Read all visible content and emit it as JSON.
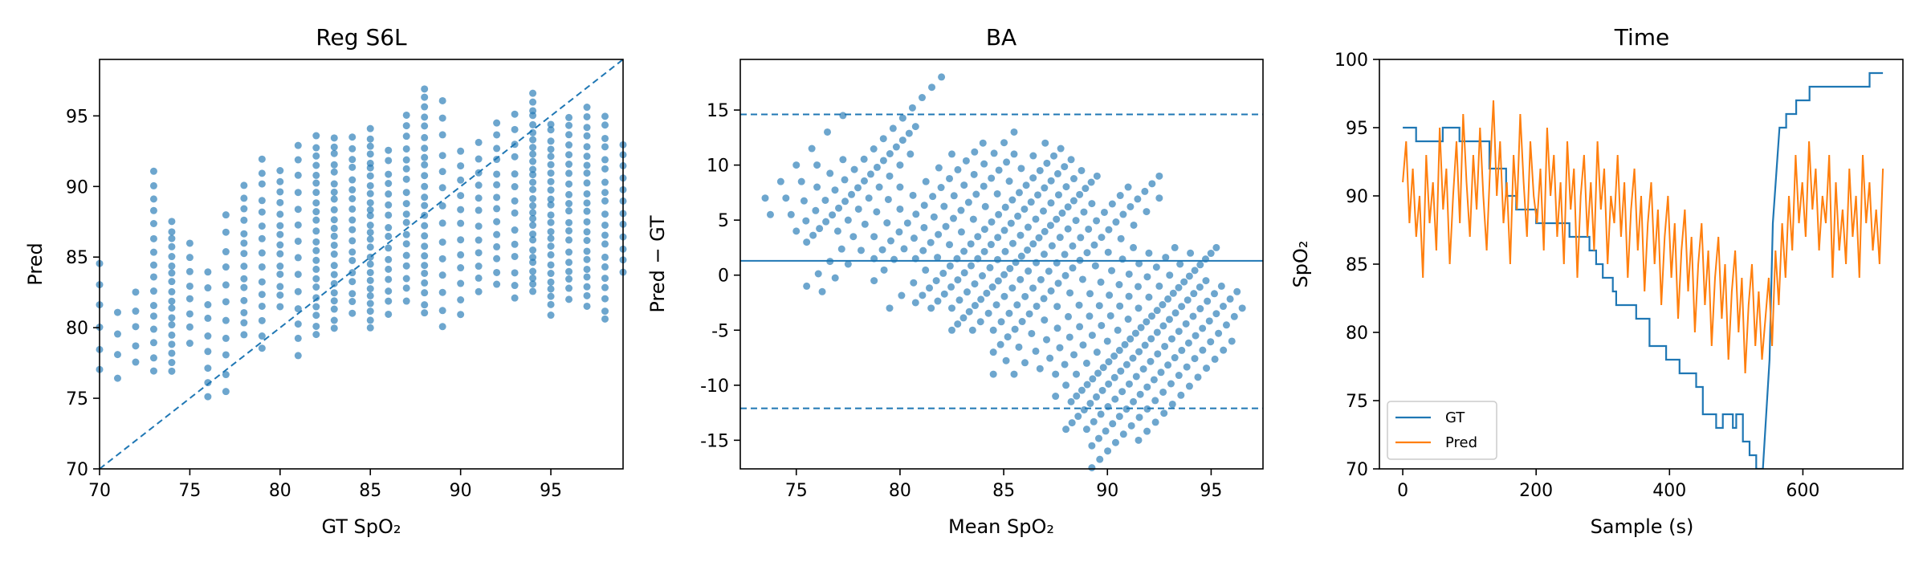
{
  "chart_data": [
    {
      "type": "scatter",
      "title": "Reg S6L",
      "xlabel": "GT SpO₂",
      "ylabel": "Pred",
      "xlim": [
        70,
        99
      ],
      "ylim": [
        70,
        99
      ],
      "xticks": [
        70,
        75,
        80,
        85,
        90,
        95
      ],
      "yticks": [
        70,
        75,
        80,
        85,
        90,
        95
      ],
      "grid": false,
      "point_color": "#1f77b4",
      "identity_line": {
        "style": "dashed",
        "from": [
          70,
          70
        ],
        "to": [
          99,
          99
        ]
      },
      "columns": [
        {
          "x": 70,
          "y_min": 77,
          "y_max": 84.5,
          "n": 6
        },
        {
          "x": 71,
          "y_min": 76.5,
          "y_max": 81,
          "n": 4
        },
        {
          "x": 72,
          "y_min": 77.5,
          "y_max": 82.5,
          "n": 5
        },
        {
          "x": 73,
          "y_min": 77,
          "y_max": 91,
          "n": 16
        },
        {
          "x": 74,
          "y_min": 77,
          "y_max": 87.5,
          "n": 18
        },
        {
          "x": 75,
          "y_min": 79,
          "y_max": 86,
          "n": 8
        },
        {
          "x": 76,
          "y_min": 75,
          "y_max": 84,
          "n": 9
        },
        {
          "x": 77,
          "y_min": 75.5,
          "y_max": 88,
          "n": 11
        },
        {
          "x": 78,
          "y_min": 79.5,
          "y_max": 90,
          "n": 14
        },
        {
          "x": 79,
          "y_min": 78.5,
          "y_max": 92,
          "n": 15
        },
        {
          "x": 80,
          "y_min": 81.5,
          "y_max": 91,
          "n": 14
        },
        {
          "x": 81,
          "y_min": 78,
          "y_max": 93,
          "n": 14
        },
        {
          "x": 82,
          "y_min": 79.5,
          "y_max": 93.5,
          "n": 22
        },
        {
          "x": 83,
          "y_min": 80,
          "y_max": 93.5,
          "n": 22
        },
        {
          "x": 84,
          "y_min": 81,
          "y_max": 93.5,
          "n": 18
        },
        {
          "x": 85,
          "y_min": 80,
          "y_max": 94,
          "n": 26
        },
        {
          "x": 86,
          "y_min": 81,
          "y_max": 92.5,
          "n": 16
        },
        {
          "x": 87,
          "y_min": 82,
          "y_max": 95,
          "n": 18
        },
        {
          "x": 88,
          "y_min": 81,
          "y_max": 97,
          "n": 24
        },
        {
          "x": 89,
          "y_min": 80,
          "y_max": 96,
          "n": 14
        },
        {
          "x": 90,
          "y_min": 81,
          "y_max": 92.5,
          "n": 12
        },
        {
          "x": 91,
          "y_min": 82.5,
          "y_max": 93,
          "n": 12
        },
        {
          "x": 92,
          "y_min": 83,
          "y_max": 94.5,
          "n": 14
        },
        {
          "x": 93,
          "y_min": 82,
          "y_max": 95,
          "n": 14
        },
        {
          "x": 94,
          "y_min": 82.5,
          "y_max": 96.5,
          "n": 28
        },
        {
          "x": 95,
          "y_min": 81,
          "y_max": 94.5,
          "n": 24
        },
        {
          "x": 96,
          "y_min": 82,
          "y_max": 95,
          "n": 20
        },
        {
          "x": 97,
          "y_min": 81.5,
          "y_max": 95.5,
          "n": 22
        },
        {
          "x": 98,
          "y_min": 80.5,
          "y_max": 95,
          "n": 20
        },
        {
          "x": 99,
          "y_min": 84,
          "y_max": 93,
          "n": 12
        }
      ]
    },
    {
      "type": "scatter",
      "title": "BA",
      "xlabel": "Mean SpO₂",
      "ylabel": "Pred − GT",
      "xlim": [
        72.3,
        97.5
      ],
      "ylim": [
        -17.6,
        19.6
      ],
      "xticks": [
        75,
        80,
        85,
        90,
        95
      ],
      "yticks": [
        -15,
        -10,
        -5,
        0,
        5,
        10,
        15
      ],
      "grid": false,
      "point_color": "#1f77b4",
      "bias": 1.3,
      "loa_upper": 14.6,
      "loa_lower": -12.1,
      "gt_levels": [
        70,
        71,
        72,
        73,
        74,
        75,
        76,
        77,
        78,
        79,
        80,
        81,
        82,
        83,
        84,
        85,
        86,
        87,
        88,
        89,
        90,
        91,
        92,
        93,
        94,
        95,
        96,
        97,
        98,
        99
      ],
      "note_points": "points lie on diagonal stripes: mean = GT + diff/2"
    },
    {
      "type": "line",
      "title": "Time",
      "xlabel": "Sample (s)",
      "ylabel": "SpO₂",
      "xlim": [
        -35,
        750
      ],
      "ylim": [
        70,
        100
      ],
      "xticks": [
        0,
        200,
        400,
        600
      ],
      "yticks": [
        70,
        75,
        80,
        85,
        90,
        95,
        100
      ],
      "grid": false,
      "legend_position": "lower-left",
      "series": [
        {
          "name": "GT",
          "color": "#1f77b4",
          "style": "step",
          "points": [
            [
              0,
              95
            ],
            [
              20,
              95
            ],
            [
              20,
              94
            ],
            [
              60,
              94
            ],
            [
              60,
              95
            ],
            [
              85,
              95
            ],
            [
              85,
              94
            ],
            [
              130,
              94
            ],
            [
              130,
              92
            ],
            [
              155,
              92
            ],
            [
              155,
              90
            ],
            [
              170,
              90
            ],
            [
              170,
              89
            ],
            [
              200,
              89
            ],
            [
              200,
              88
            ],
            [
              250,
              88
            ],
            [
              250,
              87
            ],
            [
              280,
              87
            ],
            [
              280,
              86
            ],
            [
              290,
              86
            ],
            [
              290,
              85
            ],
            [
              300,
              85
            ],
            [
              300,
              84
            ],
            [
              315,
              84
            ],
            [
              315,
              83
            ],
            [
              320,
              83
            ],
            [
              320,
              82
            ],
            [
              350,
              82
            ],
            [
              350,
              81
            ],
            [
              370,
              81
            ],
            [
              370,
              79
            ],
            [
              395,
              79
            ],
            [
              395,
              78
            ],
            [
              415,
              78
            ],
            [
              415,
              77
            ],
            [
              440,
              77
            ],
            [
              440,
              76
            ],
            [
              450,
              76
            ],
            [
              450,
              74
            ],
            [
              470,
              74
            ],
            [
              470,
              73
            ],
            [
              480,
              73
            ],
            [
              480,
              74
            ],
            [
              495,
              74
            ],
            [
              495,
              73
            ],
            [
              500,
              73
            ],
            [
              500,
              74
            ],
            [
              510,
              74
            ],
            [
              510,
              72
            ],
            [
              520,
              72
            ],
            [
              520,
              71
            ],
            [
              530,
              71
            ],
            [
              530,
              70
            ],
            [
              540,
              70
            ],
            [
              550,
              78
            ],
            [
              555,
              88
            ],
            [
              565,
              95
            ],
            [
              575,
              95
            ],
            [
              575,
              96
            ],
            [
              590,
              96
            ],
            [
              590,
              97
            ],
            [
              610,
              97
            ],
            [
              610,
              98
            ],
            [
              700,
              98
            ],
            [
              700,
              99
            ],
            [
              720,
              99
            ]
          ]
        },
        {
          "name": "Pred",
          "color": "#ff7f0e",
          "style": "line",
          "samples": [
            91,
            94,
            88,
            92,
            87,
            90,
            84,
            93,
            88,
            91,
            86,
            95,
            89,
            92,
            85,
            90,
            94,
            88,
            96,
            91,
            87,
            93,
            89,
            95,
            90,
            86,
            92,
            97,
            90,
            94,
            88,
            91,
            85,
            93,
            89,
            96,
            91,
            87,
            94,
            90,
            88,
            92,
            86,
            95,
            90,
            93,
            87,
            91,
            85,
            94,
            89,
            92,
            84,
            90,
            93,
            87,
            91,
            86,
            94,
            89,
            92,
            85,
            90,
            88,
            93,
            87,
            91,
            84,
            89,
            92,
            86,
            90,
            83,
            88,
            91,
            85,
            89,
            82,
            87,
            90,
            84,
            88,
            81,
            86,
            89,
            83,
            87,
            80,
            85,
            88,
            82,
            86,
            79,
            84,
            87,
            81,
            85,
            78,
            83,
            86,
            80,
            84,
            77,
            82,
            85,
            79,
            83,
            78,
            81,
            84,
            79,
            86,
            82,
            88,
            84,
            90,
            86,
            93,
            88,
            91,
            87,
            94,
            89,
            92,
            86,
            90,
            88,
            93,
            84,
            91,
            86,
            89,
            85,
            92,
            87,
            90,
            84,
            93,
            88,
            91,
            86,
            89,
            85,
            92
          ]
        }
      ]
    }
  ]
}
